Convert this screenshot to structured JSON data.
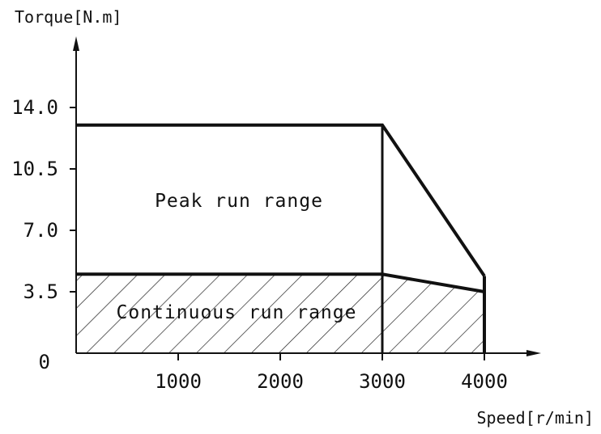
{
  "chart_data": {
    "type": "area",
    "xlabel": "Speed[r/min]",
    "ylabel": "Torque[N.m]",
    "x_ticks": [
      1000,
      2000,
      3000,
      4000
    ],
    "x_tick_labels": [
      "1000",
      "2000",
      "3000",
      "4000"
    ],
    "y_ticks": [
      0,
      3.5,
      7.0,
      10.5,
      14.0
    ],
    "y_tick_labels": [
      "0",
      "3.5",
      "7.0",
      "10.5",
      "14.0"
    ],
    "xlim": [
      0,
      4500
    ],
    "ylim": [
      0,
      18
    ],
    "grid": false,
    "series": [
      {
        "name": "Peak run range",
        "points": [
          [
            0,
            13.0
          ],
          [
            3000,
            13.0
          ],
          [
            4000,
            4.4
          ]
        ]
      },
      {
        "name": "Continuous run range",
        "points": [
          [
            0,
            4.5
          ],
          [
            3000,
            4.5
          ],
          [
            4000,
            3.5
          ]
        ]
      }
    ],
    "boundary_x": [
      3000,
      4000
    ],
    "hatched_region": "Continuous run range",
    "colors": {
      "line": "#111111",
      "hatch": "#222222",
      "background": "#ffffff"
    }
  }
}
